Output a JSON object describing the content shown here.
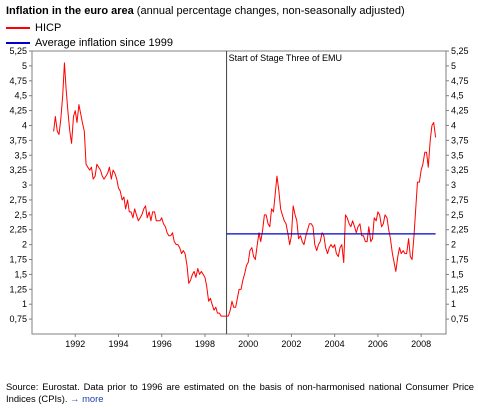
{
  "title": {
    "bold": "Inflation in the euro area",
    "rest": " (annual percentage changes, non-seasonally adjusted)"
  },
  "colors": {
    "hicp": "#ff0000",
    "average": "#0000cc",
    "link": "#1a3fa8"
  },
  "chart_data": {
    "type": "line",
    "title": "Inflation in the euro area (annual percentage changes, non-seasonally adjusted)",
    "xlim": [
      1990.0,
      2009.15
    ],
    "ylim": [
      0.5,
      5.25
    ],
    "x_ticks": [
      1992,
      1994,
      1996,
      1998,
      2000,
      2002,
      2004,
      2006,
      2008
    ],
    "x_tick_labels": [
      "1992",
      "1994",
      "1996",
      "1998",
      "2000",
      "2002",
      "2004",
      "2006",
      "2008"
    ],
    "y_ticks": [
      0.75,
      1,
      1.25,
      1.5,
      1.75,
      2,
      2.25,
      2.5,
      2.75,
      3,
      3.25,
      3.5,
      3.75,
      4,
      4.25,
      4.5,
      4.75,
      5,
      5.25
    ],
    "y_tick_labels": [
      "0,75",
      "1",
      "1,25",
      "1,5",
      "1,75",
      "2",
      "2,25",
      "2,5",
      "2,75",
      "3",
      "3,25",
      "3,5",
      "3,75",
      "4",
      "4,25",
      "4,5",
      "4,75",
      "5",
      "5,25"
    ],
    "legend_placement": "top-left",
    "grid": false,
    "series": [
      {
        "name": "HICP",
        "x": [
          1991.0,
          1991.08,
          1991.17,
          1991.25,
          1991.33,
          1991.42,
          1991.5,
          1991.58,
          1991.67,
          1991.75,
          1991.83,
          1991.92,
          1992.0,
          1992.08,
          1992.17,
          1992.25,
          1992.33,
          1992.42,
          1992.5,
          1992.58,
          1992.67,
          1992.75,
          1992.83,
          1992.92,
          1993.0,
          1993.08,
          1993.17,
          1993.25,
          1993.33,
          1993.42,
          1993.5,
          1993.58,
          1993.67,
          1993.75,
          1993.83,
          1993.92,
          1994.0,
          1994.08,
          1994.17,
          1994.25,
          1994.33,
          1994.42,
          1994.5,
          1994.58,
          1994.67,
          1994.75,
          1994.83,
          1994.92,
          1995.0,
          1995.08,
          1995.17,
          1995.25,
          1995.33,
          1995.42,
          1995.5,
          1995.58,
          1995.67,
          1995.75,
          1995.83,
          1995.92,
          1996.0,
          1996.08,
          1996.17,
          1996.25,
          1996.33,
          1996.42,
          1996.5,
          1996.58,
          1996.67,
          1996.75,
          1996.83,
          1996.92,
          1997.0,
          1997.08,
          1997.17,
          1997.25,
          1997.33,
          1997.42,
          1997.5,
          1997.58,
          1997.67,
          1997.75,
          1997.83,
          1997.92,
          1998.0,
          1998.08,
          1998.17,
          1998.25,
          1998.33,
          1998.42,
          1998.5,
          1998.58,
          1998.67,
          1998.75,
          1998.83,
          1998.92,
          1999.0,
          1999.08,
          1999.17,
          1999.25,
          1999.33,
          1999.42,
          1999.5,
          1999.58,
          1999.67,
          1999.75,
          1999.83,
          1999.92,
          2000.0,
          2000.08,
          2000.17,
          2000.25,
          2000.33,
          2000.42,
          2000.5,
          2000.58,
          2000.67,
          2000.75,
          2000.83,
          2000.92,
          2001.0,
          2001.08,
          2001.17,
          2001.25,
          2001.33,
          2001.42,
          2001.5,
          2001.58,
          2001.67,
          2001.75,
          2001.83,
          2001.92,
          2002.0,
          2002.08,
          2002.17,
          2002.25,
          2002.33,
          2002.42,
          2002.5,
          2002.58,
          2002.67,
          2002.75,
          2002.83,
          2002.92,
          2003.0,
          2003.08,
          2003.17,
          2003.25,
          2003.33,
          2003.42,
          2003.5,
          2003.58,
          2003.67,
          2003.75,
          2003.83,
          2003.92,
          2004.0,
          2004.08,
          2004.17,
          2004.25,
          2004.33,
          2004.42,
          2004.5,
          2004.58,
          2004.67,
          2004.75,
          2004.83,
          2004.92,
          2005.0,
          2005.08,
          2005.17,
          2005.25,
          2005.33,
          2005.42,
          2005.5,
          2005.58,
          2005.67,
          2005.75,
          2005.83,
          2005.92,
          2006.0,
          2006.08,
          2006.17,
          2006.25,
          2006.33,
          2006.42,
          2006.5,
          2006.58,
          2006.67,
          2006.75,
          2006.83,
          2006.92,
          2007.0,
          2007.08,
          2007.17,
          2007.25,
          2007.33,
          2007.42,
          2007.5,
          2007.58,
          2007.67,
          2007.75,
          2007.83,
          2007.92,
          2008.0,
          2008.08,
          2008.17,
          2008.25,
          2008.33,
          2008.42,
          2008.5,
          2008.58,
          2008.67
        ],
        "values": [
          3.9,
          4.15,
          3.9,
          3.85,
          4.1,
          4.5,
          5.05,
          4.6,
          4.2,
          3.9,
          3.7,
          4.15,
          4.25,
          4.05,
          4.35,
          4.2,
          4.05,
          3.9,
          3.35,
          3.3,
          3.25,
          3.3,
          3.1,
          3.15,
          3.35,
          3.3,
          3.25,
          3.15,
          3.1,
          3.15,
          3.2,
          3.3,
          3.1,
          3.25,
          3.2,
          3.1,
          2.95,
          2.9,
          2.75,
          2.8,
          2.6,
          2.75,
          2.55,
          2.55,
          2.45,
          2.6,
          2.5,
          2.4,
          2.45,
          2.5,
          2.6,
          2.65,
          2.45,
          2.55,
          2.4,
          2.55,
          2.55,
          2.4,
          2.4,
          2.4,
          2.45,
          2.35,
          2.3,
          2.2,
          2.15,
          2.15,
          2.2,
          2.05,
          2.0,
          2.0,
          1.95,
          1.85,
          1.9,
          1.85,
          1.65,
          1.35,
          1.4,
          1.5,
          1.55,
          1.45,
          1.6,
          1.5,
          1.55,
          1.5,
          1.45,
          1.3,
          1.05,
          1.1,
          1.0,
          0.9,
          0.95,
          0.85,
          0.85,
          0.8,
          0.8,
          0.8,
          0.8,
          0.8,
          0.9,
          1.05,
          0.95,
          0.95,
          1.1,
          1.25,
          1.25,
          1.4,
          1.5,
          1.65,
          1.7,
          1.9,
          1.95,
          1.8,
          1.75,
          2.0,
          2.2,
          2.05,
          2.25,
          2.5,
          2.5,
          2.35,
          2.3,
          2.6,
          2.55,
          2.85,
          3.15,
          2.9,
          2.6,
          2.5,
          2.4,
          2.35,
          2.2,
          2.0,
          2.15,
          2.65,
          2.5,
          2.4,
          2.1,
          2.15,
          2.05,
          2.0,
          2.15,
          2.25,
          2.35,
          2.35,
          2.3,
          2.0,
          1.9,
          2.0,
          2.05,
          2.2,
          2.15,
          1.95,
          1.85,
          1.95,
          2.0,
          1.95,
          2.0,
          1.85,
          1.8,
          1.95,
          2.0,
          1.7,
          2.5,
          2.45,
          2.35,
          2.3,
          2.4,
          2.3,
          2.2,
          2.3,
          2.35,
          2.15,
          2.15,
          2.05,
          2.05,
          2.3,
          2.05,
          2.1,
          2.45,
          2.4,
          2.55,
          2.5,
          2.3,
          2.35,
          2.5,
          2.45,
          2.25,
          2.1,
          1.85,
          1.7,
          1.55,
          1.8,
          1.95,
          1.85,
          1.9,
          1.85,
          1.85,
          2.1,
          1.8,
          1.75,
          2.15,
          2.6,
          3.05,
          3.05,
          3.25,
          3.35,
          3.55,
          3.55,
          3.3,
          3.75,
          4.0,
          4.05,
          3.8
        ]
      },
      {
        "name": "Average inflation since 1999",
        "x": [
          1999.0,
          2008.67
        ],
        "values": [
          2.18,
          2.18
        ]
      }
    ],
    "annotations": [
      {
        "text": "Start of Stage Three of EMU",
        "x": 1999.0
      }
    ]
  },
  "legend": [
    {
      "label": "HICP",
      "color": "#ff0000"
    },
    {
      "label": "Average inflation since 1999",
      "color": "#0000cc"
    }
  ],
  "footer": {
    "text": "Source: Eurostat. Data prior to 1996 are estimated on the basis of non-harmonised national Consumer Price Indices (CPIs).",
    "link_label": "more"
  }
}
